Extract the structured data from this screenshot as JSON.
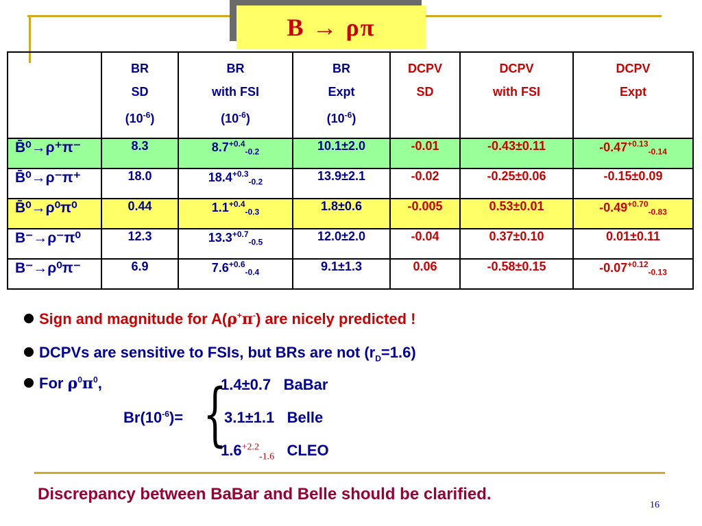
{
  "title": "B → ρπ",
  "table": {
    "headers": [
      {
        "lines": [
          "BR",
          "SD"
        ],
        "exp": "-6",
        "color": "blue"
      },
      {
        "lines": [
          "BR",
          "with FSI"
        ],
        "exp": "-6",
        "color": "blue"
      },
      {
        "lines": [
          "BR",
          "Expt"
        ],
        "exp": "-6",
        "color": "blue"
      },
      {
        "lines": [
          "DCPV",
          "SD"
        ],
        "color": "red"
      },
      {
        "lines": [
          "DCPV",
          "with FSI"
        ],
        "color": "red"
      },
      {
        "lines": [
          "DCPV",
          "Expt"
        ],
        "color": "red"
      }
    ],
    "rows": [
      {
        "process": "B̄⁰→ρ⁺π⁻",
        "br_sd": "8.3",
        "br_fsi": "8.7",
        "br_fsi_up": "+0.4",
        "br_fsi_dn": "-0.2",
        "br_expt": "10.1±2.0",
        "dcpv_sd": "-0.01",
        "dcpv_fsi": "-0.43±0.11",
        "dcpv_expt": "-0.47",
        "dcpv_expt_up": "+0.13",
        "dcpv_expt_dn": "-0.14",
        "highlight": "green"
      },
      {
        "process": "B̄⁰→ρ⁻π⁺",
        "br_sd": "18.0",
        "br_fsi": "18.4",
        "br_fsi_up": "+0.3",
        "br_fsi_dn": "-0.2",
        "br_expt": "13.9±2.1",
        "dcpv_sd": "-0.02",
        "dcpv_fsi": "-0.25±0.06",
        "dcpv_expt": "-0.15±0.09",
        "dcpv_expt_up": "",
        "dcpv_expt_dn": "",
        "highlight": ""
      },
      {
        "process": "B̄⁰→ρ⁰π⁰",
        "br_sd": "0.44",
        "br_fsi": "1.1",
        "br_fsi_up": "+0.4",
        "br_fsi_dn": "-0.3",
        "br_expt": "1.8±0.6",
        "dcpv_sd": "-0.005",
        "dcpv_fsi": "0.53±0.01",
        "dcpv_expt": "-0.49",
        "dcpv_expt_up": "+0.70",
        "dcpv_expt_dn": "-0.83",
        "highlight": "yellow"
      },
      {
        "process": "B⁻→ρ⁻π⁰",
        "br_sd": "12.3",
        "br_fsi": "13.3",
        "br_fsi_up": "+0.7",
        "br_fsi_dn": "-0.5",
        "br_expt": "12.0±2.0",
        "dcpv_sd": "-0.04",
        "dcpv_fsi": "0.37±0.10",
        "dcpv_expt": "0.01±0.11",
        "dcpv_expt_up": "",
        "dcpv_expt_dn": "",
        "highlight": ""
      },
      {
        "process": "B⁻→ρ⁰π⁻",
        "br_sd": "6.9",
        "br_fsi": "7.6",
        "br_fsi_up": "+0.6",
        "br_fsi_dn": "-0.4",
        "br_expt": "9.1±1.3",
        "dcpv_sd": "0.06",
        "dcpv_fsi": "-0.58±0.15",
        "dcpv_expt": "-0.07",
        "dcpv_expt_up": "+0.12",
        "dcpv_expt_dn": "-0.13",
        "highlight": ""
      }
    ]
  },
  "bullets": {
    "b1": {
      "text_a": "Sign and magnitude for A(",
      "rho": "ρ",
      "plus": "+",
      "pi": "π",
      "minus": "-",
      "text_b": ") are nicely predicted !"
    },
    "b2": {
      "text_a": "DCPVs are sensitive to FSIs, but BRs are not  (r",
      "sub": "D",
      "text_b": "=1.6)"
    },
    "b3": {
      "text_a": "For ",
      "rho": "ρ",
      "zero1": "0",
      "pi": "π",
      "zero2": "0",
      "text_b": ","
    }
  },
  "measurements": {
    "br_label_a": "Br(10",
    "br_label_exp": "-6",
    "br_label_b": ")=",
    "items": [
      {
        "value": "1.4±0.7",
        "experiment": "BaBar"
      },
      {
        "value": "3.1±1.1",
        "experiment": "Belle"
      },
      {
        "value": "1.6",
        "up": "+2.2",
        "down": "-1.6",
        "experiment": "CLEO"
      }
    ]
  },
  "conclusion": "Discrepancy between BaBar and Belle should be clarified.",
  "page_number": "16",
  "colors": {
    "accent_line": "#d4a820",
    "title_bg": "#ffff66",
    "title_text": "#cc0000",
    "blue_text": "#000099",
    "red_text": "#cc0000",
    "green_cell": "#99ff99",
    "yellow_cell": "#ffff66",
    "conclusion": "#990033"
  }
}
